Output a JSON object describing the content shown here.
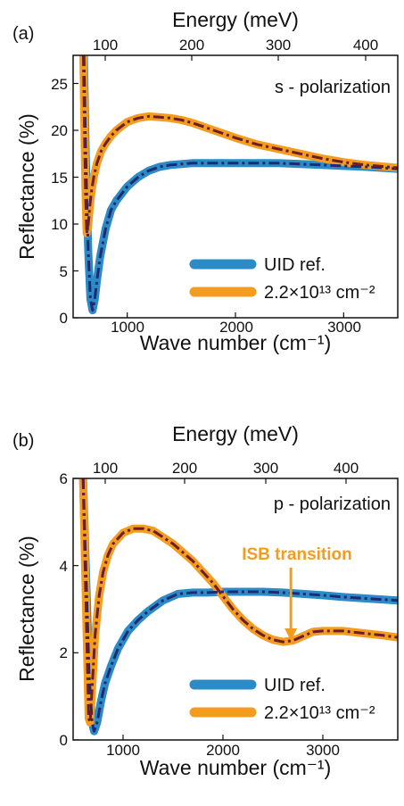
{
  "chart_data": [
    {
      "type": "line",
      "panel_label": "(a)",
      "annotation": "s - polarization",
      "xlabel": "Wave number (cm⁻¹)",
      "x2label": "Energy (meV)",
      "ylabel": "Reflectance (%)",
      "xlim": [
        500,
        3500
      ],
      "ylim": [
        0,
        28
      ],
      "xticks": [
        "1000",
        "2000",
        "3000"
      ],
      "x2ticks": [
        "100",
        "200",
        "300",
        "400"
      ],
      "yticks": [
        "0",
        "5",
        "10",
        "15",
        "20",
        "25"
      ],
      "legend_position": "bottom-right",
      "series": [
        {
          "name": "UID ref.",
          "color": "#2b8bc6",
          "x": [
            600,
            612,
            625,
            640,
            660,
            680,
            700,
            720,
            750,
            800,
            850,
            900,
            1000,
            1100,
            1200,
            1300,
            1400,
            1500,
            1600,
            1800,
            2000,
            2200,
            2400,
            2600,
            2800,
            3000,
            3200,
            3500
          ],
          "y": [
            28,
            20,
            13,
            7,
            2,
            0.8,
            2,
            4,
            6.5,
            9.5,
            11.5,
            12.5,
            14,
            15,
            15.7,
            16.1,
            16.3,
            16.4,
            16.5,
            16.5,
            16.5,
            16.5,
            16.5,
            16.4,
            16.3,
            16.2,
            16.1,
            15.9
          ]
        },
        {
          "name": "2.2×10¹³ cm⁻²",
          "color": "#f39c1f",
          "x": [
            595,
            605,
            615,
            625,
            640,
            655,
            670,
            690,
            720,
            760,
            800,
            850,
            900,
            1000,
            1100,
            1200,
            1300,
            1400,
            1500,
            1600,
            1800,
            2000,
            2200,
            2400,
            2600,
            2800,
            3000,
            3200,
            3500
          ],
          "y": [
            28,
            20,
            13,
            9,
            10,
            12,
            13.5,
            15,
            16.5,
            17.8,
            18.6,
            19.4,
            20,
            20.9,
            21.3,
            21.5,
            21.4,
            21.3,
            21.1,
            20.8,
            20,
            19.2,
            18.5,
            18,
            17.5,
            17,
            16.6,
            16.3,
            16
          ]
        }
      ]
    },
    {
      "type": "line",
      "panel_label": "(b)",
      "annotation": "p - polarization",
      "callout": "ISB transition",
      "callout_x": 2680,
      "xlabel": "Wave number (cm⁻¹)",
      "x2label": "Energy (meV)",
      "ylabel": "Reflectance (%)",
      "xlim": [
        500,
        3750
      ],
      "ylim": [
        0,
        6
      ],
      "xticks": [
        "1000",
        "2000",
        "3000"
      ],
      "x2ticks": [
        "100",
        "200",
        "300",
        "400"
      ],
      "yticks": [
        "0",
        "2",
        "4",
        "6"
      ],
      "legend_position": "bottom-right",
      "series": [
        {
          "name": "UID ref.",
          "color": "#2b8bc6",
          "x": [
            600,
            620,
            640,
            660,
            690,
            710,
            740,
            780,
            820,
            880,
            950,
            1050,
            1150,
            1250,
            1400,
            1550,
            1700,
            1850,
            2000,
            2200,
            2400,
            2600,
            2800,
            3000,
            3200,
            3400,
            3750
          ],
          "y": [
            6,
            4.5,
            3,
            1.5,
            0.4,
            0.2,
            0.4,
            0.9,
            1.3,
            1.7,
            2.1,
            2.5,
            2.75,
            2.95,
            3.2,
            3.35,
            3.38,
            3.38,
            3.4,
            3.4,
            3.4,
            3.38,
            3.35,
            3.32,
            3.28,
            3.25,
            3.2
          ]
        },
        {
          "name": "2.2×10¹³ cm⁻²",
          "color": "#f39c1f",
          "x": [
            600,
            620,
            640,
            655,
            670,
            690,
            720,
            760,
            800,
            850,
            900,
            1000,
            1100,
            1200,
            1300,
            1400,
            1500,
            1600,
            1700,
            1800,
            1900,
            2000,
            2100,
            2200,
            2300,
            2400,
            2500,
            2600,
            2700,
            2800,
            2900,
            3000,
            3200,
            3400,
            3600,
            3750
          ],
          "y": [
            6,
            4,
            2,
            0.5,
            0.4,
            1.2,
            2.4,
            3.3,
            3.85,
            4.25,
            4.5,
            4.75,
            4.85,
            4.85,
            4.8,
            4.65,
            4.5,
            4.3,
            4.1,
            3.85,
            3.6,
            3.3,
            3,
            2.75,
            2.55,
            2.4,
            2.3,
            2.25,
            2.28,
            2.38,
            2.48,
            2.5,
            2.5,
            2.45,
            2.4,
            2.35
          ]
        }
      ]
    }
  ]
}
